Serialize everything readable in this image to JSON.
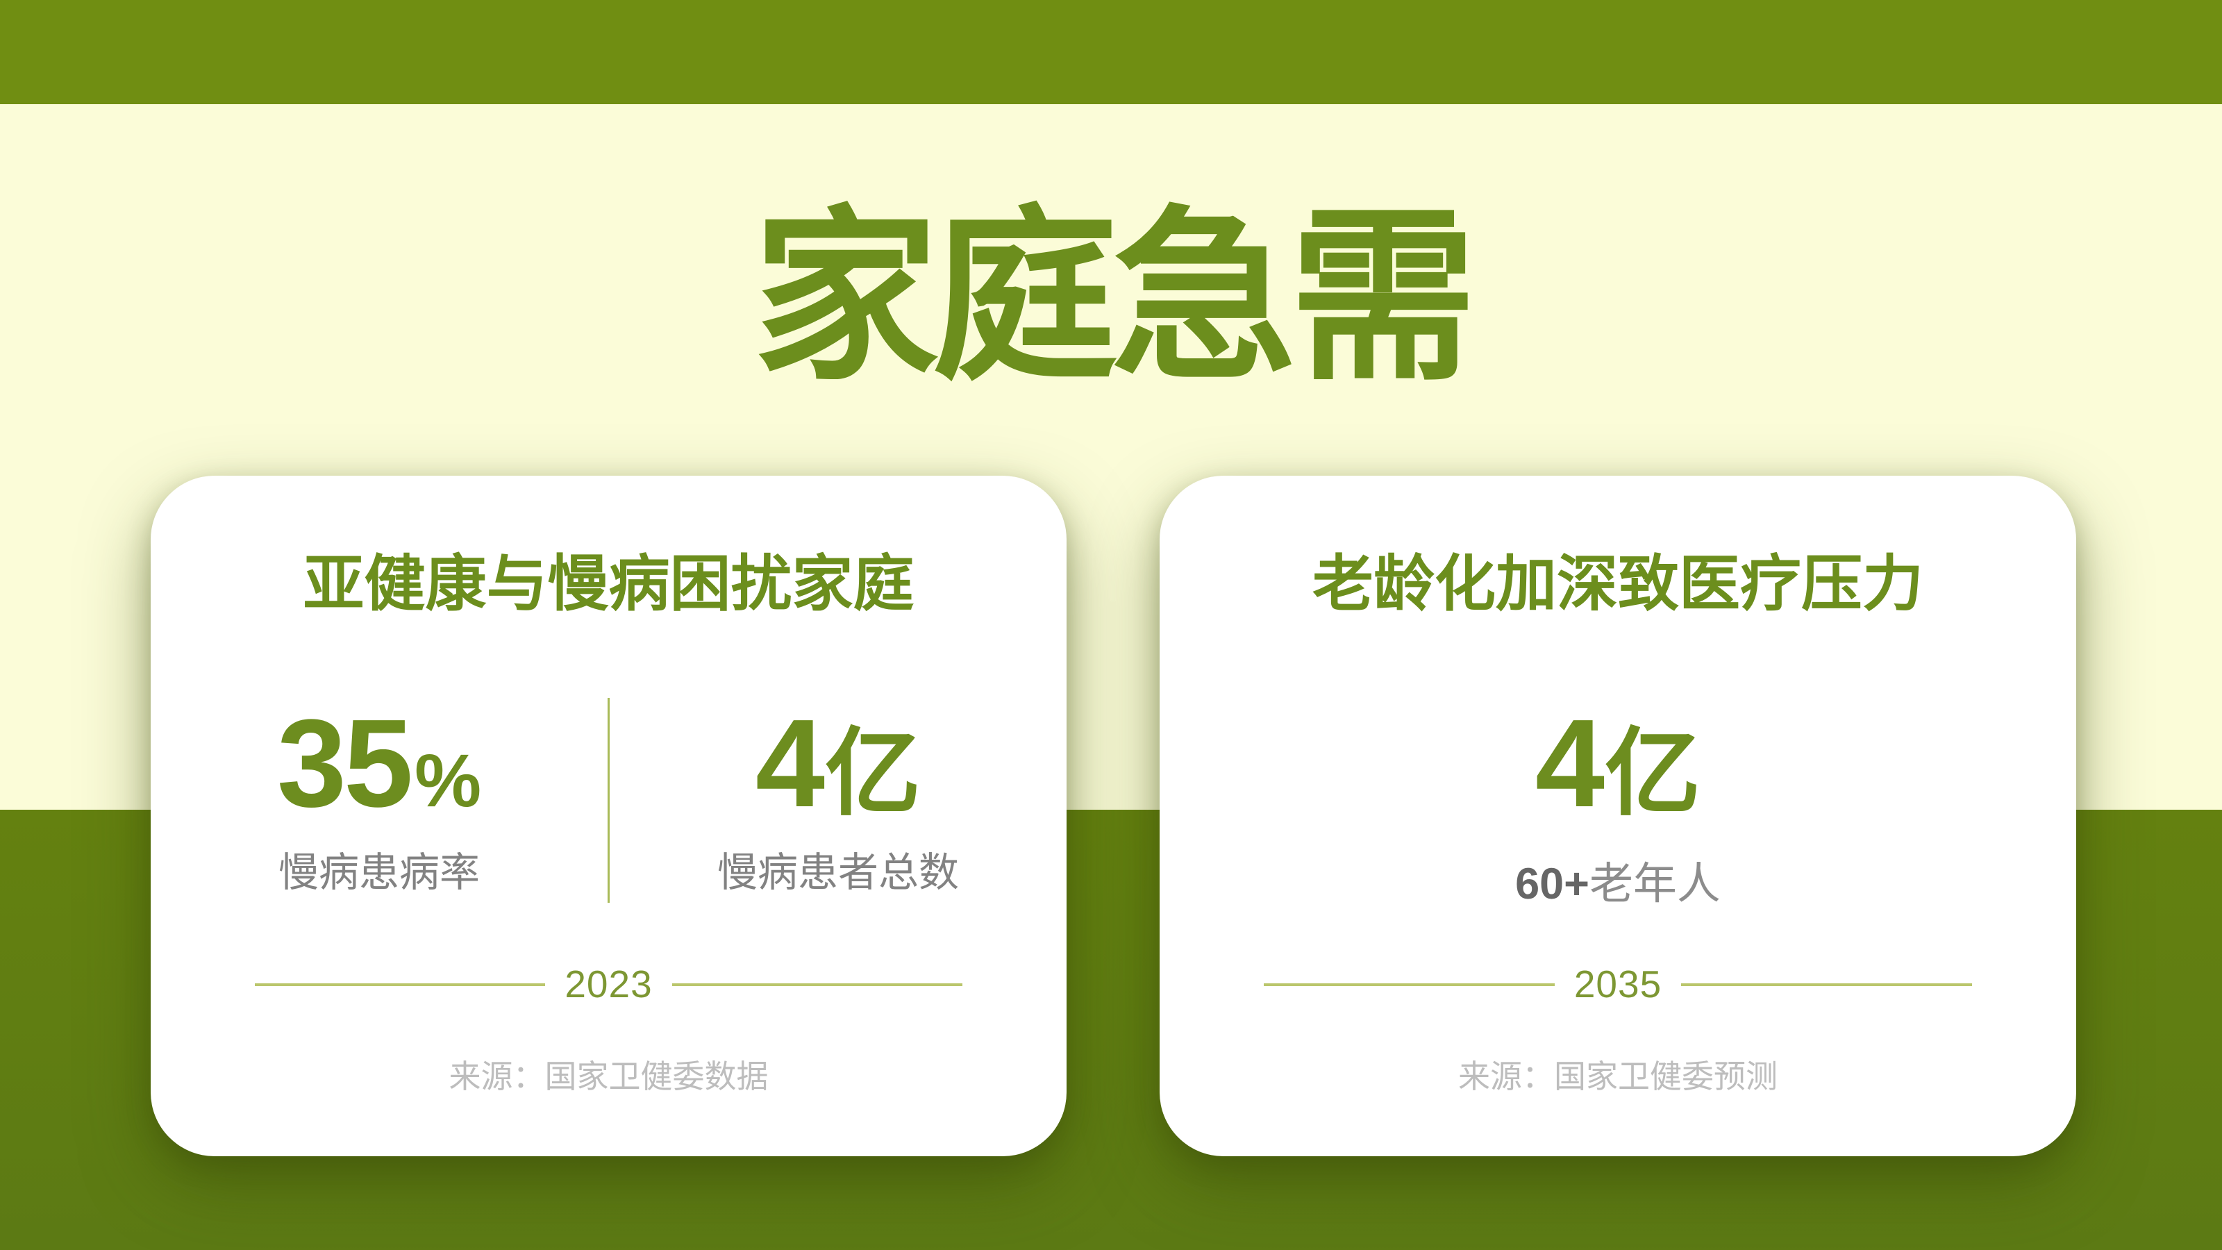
{
  "slide": {
    "title": "家庭急需"
  },
  "colors": {
    "top_bar_green": "#708e12",
    "upper_background": "#fbfcd8",
    "lower_background": "#5e7b13",
    "accent_green": "#6c8e1d",
    "number_green": "#6d8d1f",
    "divider_green": "#a9bb58",
    "year_text_green": "#7d9733",
    "year_line_green": "#bac66c",
    "label_gray": "#828282",
    "strong_label_gray": "#666666",
    "source_gray": "#bdbdbd",
    "card_background": "#ffffff"
  },
  "cards": [
    {
      "heading": "亚健康与慢病困扰家庭",
      "stats": [
        {
          "value": "35",
          "unit": "%",
          "label": "慢病患病率"
        },
        {
          "value": "4",
          "unit": "亿",
          "label": "慢病患者总数"
        }
      ],
      "year": "2023",
      "source": "来源：国家卫健委数据"
    },
    {
      "heading": "老龄化加深致医疗压力",
      "stats": [
        {
          "value": "4",
          "unit": "亿",
          "label_strong": "60+",
          "label": "老年人"
        }
      ],
      "year": "2035",
      "source": "来源：国家卫健委预测"
    }
  ]
}
